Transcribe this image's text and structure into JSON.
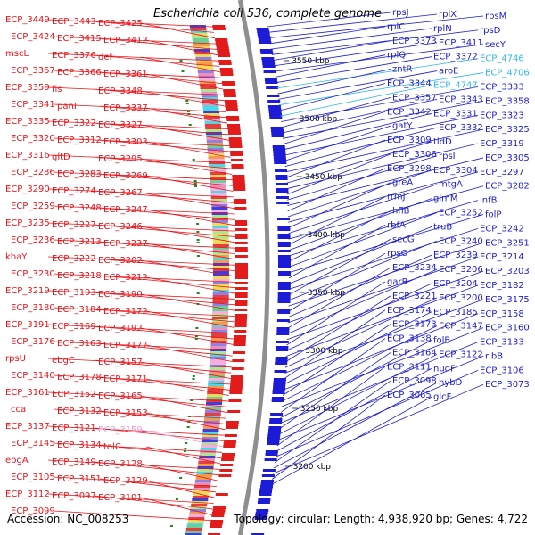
{
  "title": "Escherichia coli 536, complete genome",
  "accession": "Accession: NC_008253",
  "summary": "Topology: circular; Length: 4,938,920 bp; Genes: 4,722",
  "colors": {
    "left_label": "#e8141a",
    "right_label": "#1c1ccf",
    "cyan_label": "#2fb8e6",
    "pink_label": "#e99be0",
    "backbone": "#8f8f8f",
    "tick_text": "#000000",
    "marker": "#1a8a1a"
  },
  "ticks": [
    {
      "label": "3550 kbp"
    },
    {
      "label": "3500 kbp"
    },
    {
      "label": "3450 kbp"
    },
    {
      "label": "3400 kbp"
    },
    {
      "label": "3350 kbp"
    },
    {
      "label": "3300 kbp"
    },
    {
      "label": "3250 kbp"
    },
    {
      "label": "3200 kbp"
    }
  ],
  "left_labels": [
    {
      "text": "ECP_3449"
    },
    {
      "text": "ECP_3443"
    },
    {
      "text": "ECP_3425"
    },
    {
      "text": "ECP_3424"
    },
    {
      "text": "ECP_3415"
    },
    {
      "text": "ECP_3412"
    },
    {
      "text": "mscL"
    },
    {
      "text": "ECP_3376"
    },
    {
      "text": "def"
    },
    {
      "text": "ECP_3367"
    },
    {
      "text": "ECP_3366"
    },
    {
      "text": "ECP_3361"
    },
    {
      "text": "ECP_3359"
    },
    {
      "text": "fis"
    },
    {
      "text": "ECP_3348"
    },
    {
      "text": "ECP_3341"
    },
    {
      "text": "panF"
    },
    {
      "text": "ECP_3337"
    },
    {
      "text": "ECP_3335"
    },
    {
      "text": "ECP_3322"
    },
    {
      "text": "ECP_3327"
    },
    {
      "text": "ECP_3320"
    },
    {
      "text": "ECP_3312"
    },
    {
      "text": "ECP_3303"
    },
    {
      "text": "ECP_3316"
    },
    {
      "text": "gltD"
    },
    {
      "text": "ECP_3295"
    },
    {
      "text": "ECP_3286"
    },
    {
      "text": "ECP_3283"
    },
    {
      "text": "ECP_3269"
    },
    {
      "text": "ECP_3290"
    },
    {
      "text": "ECP_3274"
    },
    {
      "text": "ECP_3267"
    },
    {
      "text": "ECP_3259"
    },
    {
      "text": "ECP_3248"
    },
    {
      "text": "ECP_3247"
    },
    {
      "text": "ECP_3235"
    },
    {
      "text": "ECP_3227"
    },
    {
      "text": "ECP_3246"
    },
    {
      "text": "ECP_3236"
    },
    {
      "text": "ECP_3213"
    },
    {
      "text": "ECP_3237"
    },
    {
      "text": "kbaY"
    },
    {
      "text": "ECP_3222"
    },
    {
      "text": "ECP_3202"
    },
    {
      "text": "ECP_3230"
    },
    {
      "text": "ECP_3218"
    },
    {
      "text": "ECP_3212"
    },
    {
      "text": "ECP_3219"
    },
    {
      "text": "ECP_3193"
    },
    {
      "text": "ECP_3190"
    },
    {
      "text": "ECP_3180"
    },
    {
      "text": "ECP_3184"
    },
    {
      "text": "ECP_3172"
    },
    {
      "text": "ECP_3191"
    },
    {
      "text": "ECP_3169"
    },
    {
      "text": "ECP_3192"
    },
    {
      "text": "ECP_3176"
    },
    {
      "text": "ECP_3163"
    },
    {
      "text": "ECP_3177"
    },
    {
      "text": "rpsU"
    },
    {
      "text": "ebgC"
    },
    {
      "text": "ECP_3157"
    },
    {
      "text": "ECP_3140"
    },
    {
      "text": "ECP_3178"
    },
    {
      "text": "ECP_3171"
    },
    {
      "text": "ECP_3161"
    },
    {
      "text": "ECP_3152"
    },
    {
      "text": "ECP_3165"
    },
    {
      "text": "cca"
    },
    {
      "text": "ECP_3132"
    },
    {
      "text": "ECP_3153"
    },
    {
      "text": "ECP_3137"
    },
    {
      "text": "ECP_3121"
    },
    {
      "text": "ECP_3159"
    },
    {
      "text": "ECP_3145"
    },
    {
      "text": "ECP_3134"
    },
    {
      "text": "tolC"
    },
    {
      "text": "ebgA"
    },
    {
      "text": "ECP_3149"
    },
    {
      "text": "ECP_3128"
    },
    {
      "text": "ECP_3105"
    },
    {
      "text": "ECP_3151"
    },
    {
      "text": "ECP_3129"
    },
    {
      "text": "ECP_3112"
    },
    {
      "text": "ECP_3097"
    },
    {
      "text": "ECP_3101"
    },
    {
      "text": "ECP_3099"
    }
  ],
  "right_labels": [
    {
      "text": "rpsJ"
    },
    {
      "text": "rplX"
    },
    {
      "text": "rpsM"
    },
    {
      "text": "rplC"
    },
    {
      "text": "rplN"
    },
    {
      "text": "rpsD"
    },
    {
      "text": "ECP_3373"
    },
    {
      "text": "ECP_3411"
    },
    {
      "text": "secY"
    },
    {
      "text": "rplQ"
    },
    {
      "text": "ECP_3372"
    },
    {
      "text": "ECP_4746"
    },
    {
      "text": "zntR"
    },
    {
      "text": "aroE"
    },
    {
      "text": "ECP_4706"
    },
    {
      "text": "ECP_3344"
    },
    {
      "text": "ECP_4747"
    },
    {
      "text": "ECP_3333"
    },
    {
      "text": "ECP_3357"
    },
    {
      "text": "ECP_3343"
    },
    {
      "text": "ECP_3358"
    },
    {
      "text": "ECP_3342"
    },
    {
      "text": "ECP_3331"
    },
    {
      "text": "ECP_3323"
    },
    {
      "text": "gatY"
    },
    {
      "text": "ECP_3332"
    },
    {
      "text": "ECP_3325"
    },
    {
      "text": "ECP_3309"
    },
    {
      "text": "tldD"
    },
    {
      "text": "ECP_3319"
    },
    {
      "text": "ECP_3306"
    },
    {
      "text": "rpsI"
    },
    {
      "text": "ECP_3305"
    },
    {
      "text": "ECP_3298"
    },
    {
      "text": "ECP_3304"
    },
    {
      "text": "ECP_3297"
    },
    {
      "text": "greA"
    },
    {
      "text": "mtgA"
    },
    {
      "text": "ECP_3282"
    },
    {
      "text": "rrmJ"
    },
    {
      "text": "glmM"
    },
    {
      "text": "infB"
    },
    {
      "text": "hflB"
    },
    {
      "text": "ECP_3252"
    },
    {
      "text": "folP"
    },
    {
      "text": "rbfA"
    },
    {
      "text": "truB"
    },
    {
      "text": "ECP_3242"
    },
    {
      "text": "secG"
    },
    {
      "text": "ECP_3240"
    },
    {
      "text": "ECP_3251"
    },
    {
      "text": "rpsO"
    },
    {
      "text": "ECP_3239"
    },
    {
      "text": "ECP_3214"
    },
    {
      "text": "ECP_3234"
    },
    {
      "text": "ECP_3206"
    },
    {
      "text": "ECP_3203"
    },
    {
      "text": "garR"
    },
    {
      "text": "ECP_3204"
    },
    {
      "text": "ECP_3182"
    },
    {
      "text": "ECP_3221"
    },
    {
      "text": "ECP_3200"
    },
    {
      "text": "ECP_3175"
    },
    {
      "text": "ECP_3174"
    },
    {
      "text": "ECP_3185"
    },
    {
      "text": "ECP_3158"
    },
    {
      "text": "ECP_3173"
    },
    {
      "text": "ECP_3147"
    },
    {
      "text": "ECP_3160"
    },
    {
      "text": "ECP_3138"
    },
    {
      "text": "folB"
    },
    {
      "text": "ECP_3133"
    },
    {
      "text": "ECP_3164"
    },
    {
      "text": "ECP_3122"
    },
    {
      "text": "ribB"
    },
    {
      "text": "ECP_3111"
    },
    {
      "text": "nudF"
    },
    {
      "text": "ECP_3106"
    },
    {
      "text": "ECP_3098"
    },
    {
      "text": "hybD"
    },
    {
      "text": "ECP_3073"
    },
    {
      "text": "ECP_3065"
    },
    {
      "text": "glcF"
    }
  ]
}
